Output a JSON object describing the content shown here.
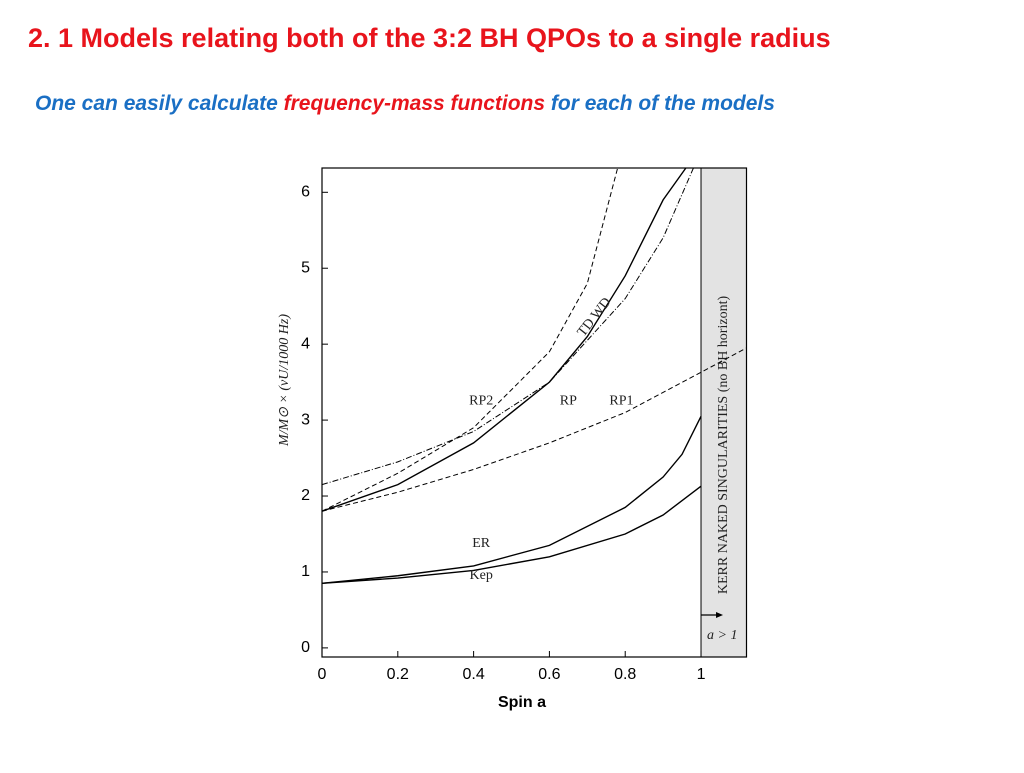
{
  "header": {
    "title": "2. 1 Models relating both of the 3:2 BH QPOs to a single radius",
    "subtitle_parts": [
      {
        "text": "One can easily calculate ",
        "color": "#1a6fc4"
      },
      {
        "text": "frequency-mass  functions",
        "color": "#e8141c"
      },
      {
        "text": " for each of the models",
        "color": "#1a6fc4"
      }
    ]
  },
  "chart_data": {
    "type": "line",
    "x_label": "Spin a",
    "y_label": "M/M⊙ × (νU/1000 Hz)",
    "xlim": [
      0,
      1.12
    ],
    "ylim": [
      -0.12,
      6.32
    ],
    "xticks": [
      0,
      0.2,
      0.4,
      0.6,
      0.8,
      1
    ],
    "yticks": [
      0,
      1,
      2,
      3,
      4,
      5,
      6
    ],
    "shaded_region": {
      "x": [
        1,
        1.12
      ],
      "label": "KERR NAKED SINGULARITIES (no BH horizont)",
      "note": "a > 1",
      "color": "#e3e3e3"
    },
    "series": [
      {
        "name": "Kep",
        "color": "#000000",
        "style": "solid",
        "x": [
          0,
          0.2,
          0.4,
          0.6,
          0.8,
          0.9,
          1
        ],
        "values": [
          0.85,
          0.92,
          1.02,
          1.2,
          1.5,
          1.75,
          2.13
        ]
      },
      {
        "name": "ER",
        "color": "#000000",
        "style": "solid",
        "x": [
          0,
          0.2,
          0.4,
          0.6,
          0.8,
          0.9,
          0.95,
          1
        ],
        "values": [
          0.85,
          0.95,
          1.08,
          1.35,
          1.85,
          2.25,
          2.55,
          3.05
        ]
      },
      {
        "name": "RP",
        "color": "#000000",
        "style": "solid",
        "x": [
          0,
          0.2,
          0.4,
          0.6,
          0.7,
          0.8,
          0.9,
          0.96
        ],
        "values": [
          1.8,
          2.15,
          2.7,
          3.5,
          4.1,
          4.9,
          5.9,
          6.32
        ]
      },
      {
        "name": "RP1",
        "color": "#000000",
        "style": "dashed",
        "x": [
          0,
          0.2,
          0.4,
          0.6,
          0.8,
          1,
          1.12
        ],
        "values": [
          1.8,
          2.05,
          2.35,
          2.7,
          3.1,
          3.63,
          3.95
        ]
      },
      {
        "name": "RP2",
        "color": "#000000",
        "style": "dashed",
        "x": [
          0,
          0.2,
          0.4,
          0.6,
          0.7,
          0.78
        ],
        "values": [
          1.8,
          2.3,
          2.9,
          3.9,
          4.8,
          6.32
        ]
      },
      {
        "name": "TD WD",
        "color": "#000000",
        "style": "dashdot",
        "x": [
          0,
          0.2,
          0.4,
          0.6,
          0.8,
          0.9,
          0.98
        ],
        "values": [
          2.15,
          2.45,
          2.85,
          3.5,
          4.6,
          5.4,
          6.32
        ]
      }
    ]
  }
}
